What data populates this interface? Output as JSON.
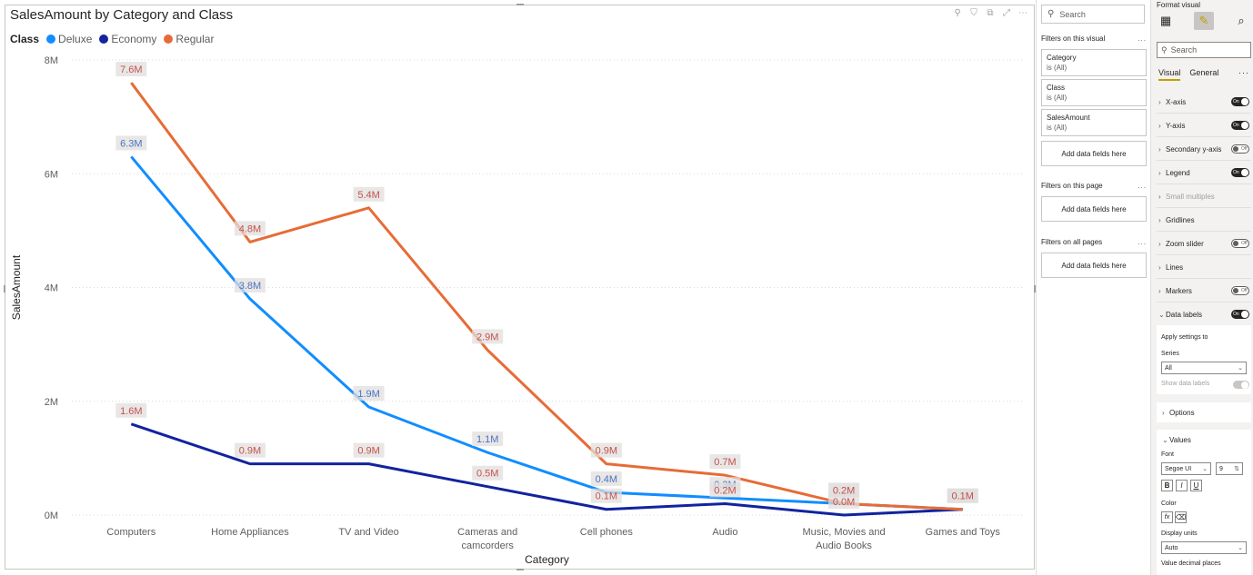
{
  "visual": {
    "title": "SalesAmount by Category and Class",
    "legend_title": "Class",
    "legend": [
      {
        "label": "Deluxe",
        "color": "#118DFF"
      },
      {
        "label": "Economy",
        "color": "#12239E"
      },
      {
        "label": "Regular",
        "color": "#E66C37"
      }
    ],
    "toolbar_icons": [
      "pin-icon",
      "filter-icon",
      "focus-mode-icon",
      "expand-icon",
      "more-options-icon"
    ]
  },
  "chart_data": {
    "type": "line",
    "title": "SalesAmount by Category and Class",
    "xlabel": "Category",
    "ylabel": "SalesAmount",
    "categories": [
      "Computers",
      "Home Appliances",
      "TV and Video",
      "Cameras and camcorders",
      "Cell phones",
      "Audio",
      "Music, Movies and Audio Books",
      "Games and Toys"
    ],
    "y_ticks": [
      "0M",
      "2M",
      "4M",
      "6M",
      "8M"
    ],
    "ylim": [
      0,
      8000000
    ],
    "grid": true,
    "legend_position": "top-left",
    "series": [
      {
        "name": "Deluxe",
        "color": "#118DFF",
        "label_color": "#4a73c4",
        "values": [
          6300000,
          3800000,
          1900000,
          1100000,
          400000,
          300000,
          200000,
          100000
        ],
        "labels": [
          "6.3M",
          "3.8M",
          "1.9M",
          "1.1M",
          "0.4M",
          "0.3M",
          "0.2M",
          "0.1M"
        ]
      },
      {
        "name": "Economy",
        "color": "#12239E",
        "label_color": "#c4524e",
        "values": [
          1600000,
          900000,
          900000,
          500000,
          100000,
          200000,
          0,
          100000
        ],
        "labels": [
          "1.6M",
          "0.9M",
          "0.9M",
          "0.5M",
          "0.1M",
          "0.2M",
          "0.0M",
          "0.1M"
        ]
      },
      {
        "name": "Regular",
        "color": "#E66C37",
        "label_color": "#c4524e",
        "values": [
          7600000,
          4800000,
          5400000,
          2900000,
          900000,
          700000,
          200000,
          100000
        ],
        "labels": [
          "7.6M",
          "4.8M",
          "5.4M",
          "2.9M",
          "0.9M",
          "0.7M",
          "0.2M",
          "0.1M"
        ]
      }
    ]
  },
  "filters": {
    "search_placeholder": "Search",
    "on_visual_title": "Filters on this visual",
    "cards": [
      {
        "name": "Category",
        "state": "is (All)"
      },
      {
        "name": "Class",
        "state": "is (All)"
      },
      {
        "name": "SalesAmount",
        "state": "is (All)"
      }
    ],
    "add_fields": "Add data fields here",
    "on_page_title": "Filters on this page",
    "on_all_pages_title": "Filters on all pages",
    "more": "..."
  },
  "format": {
    "title": "Format visual",
    "search_placeholder": "Search",
    "tabs": [
      "Visual",
      "General"
    ],
    "more": "···",
    "cards": [
      {
        "label": "X-axis",
        "toggle": "On"
      },
      {
        "label": "Y-axis",
        "toggle": "On"
      },
      {
        "label": "Secondary y-axis",
        "toggle": "Off"
      },
      {
        "label": "Legend",
        "toggle": "On"
      },
      {
        "label": "Small multiples",
        "toggle": ""
      },
      {
        "label": "Gridlines",
        "toggle": ""
      },
      {
        "label": "Zoom slider",
        "toggle": "Off"
      },
      {
        "label": "Lines",
        "toggle": ""
      },
      {
        "label": "Markers",
        "toggle": "Off"
      },
      {
        "label": "Data labels",
        "toggle": "On"
      }
    ],
    "apply_settings": "Apply settings to",
    "series_label": "Series",
    "series_value": "All",
    "show_data_labels": "Show data labels",
    "options": "Options",
    "values": "Values",
    "font_label": "Font",
    "font_value": "Segoe UI",
    "font_size": "9",
    "bold": "B",
    "italic": "I",
    "underline": "U",
    "color_label": "Color",
    "fx": "fx",
    "display_units_label": "Display units",
    "display_units_value": "Auto",
    "decimal_places_label": "Value decimal places"
  }
}
